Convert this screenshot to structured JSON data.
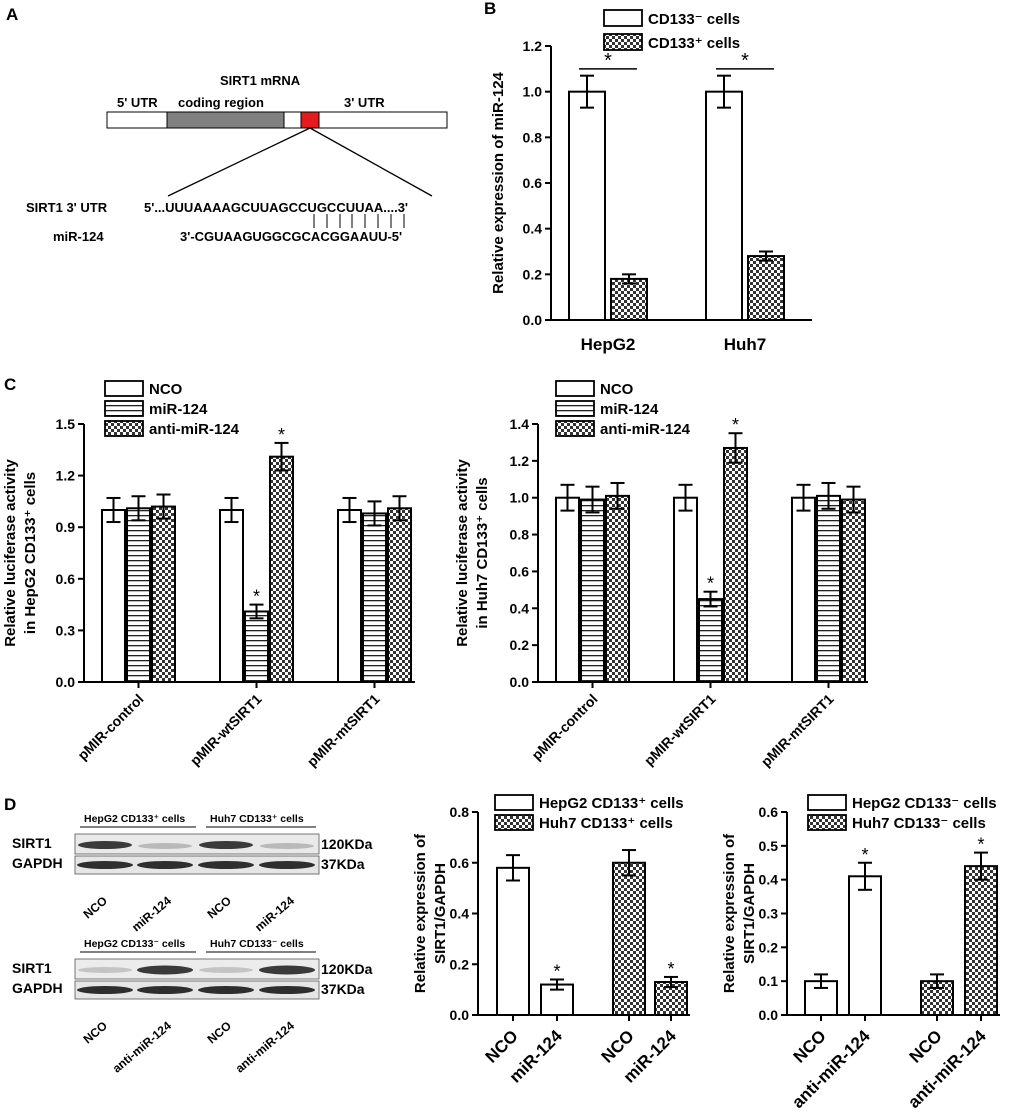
{
  "panels": {
    "a": "A",
    "b": "B",
    "c": "C",
    "d": "D"
  },
  "panel_a": {
    "mrna_title": "SIRT1 mRNA",
    "utr5": "5' UTR",
    "coding": "coding region",
    "utr3": "3' UTR",
    "seq_label_1": "SIRT1 3' UTR",
    "seq_label_2": "miR-124",
    "seq_1": "5'...UUUAAAAGCUUAGCCUGCCUUAA....3'",
    "seq_2": "3'-CGUAAGUGGCGCACGGAAUU-5'",
    "colors": {
      "coding": "#808080",
      "site": "#e41a1c"
    }
  },
  "blots": {
    "top": {
      "header_1": "HepG2 CD133⁺ cells",
      "header_2": "Huh7 CD133⁺ cells",
      "row_1": "SIRT1",
      "row_2": "GAPDH",
      "kda_1": "120KDa",
      "kda_2": "37KDa",
      "lanes": [
        "NCO",
        "miR-124",
        "NCO",
        "miR-124"
      ]
    },
    "bottom": {
      "header_1": "HepG2 CD133⁻ cells",
      "header_2": "Huh7 CD133⁻ cells",
      "row_1": "SIRT1",
      "row_2": "GAPDH",
      "kda_1": "120KDa",
      "kda_2": "37KDa",
      "lanes": [
        "NCO",
        "anti-miR-124",
        "NCO",
        "anti-miR-124"
      ]
    }
  },
  "chart_data": [
    {
      "id": "B",
      "type": "bar",
      "ylabel": "Relative expression of miR-124",
      "ylim": [
        0,
        1.2
      ],
      "yticks": [
        "0.0",
        "0.2",
        "0.4",
        "0.6",
        "0.8",
        "1.0",
        "1.2"
      ],
      "categories": [
        "HepG2",
        "Huh7"
      ],
      "series": [
        {
          "name": "CD133⁻ cells",
          "pattern": "white",
          "values": [
            1.0,
            1.0
          ],
          "errors": [
            0.07,
            0.07
          ]
        },
        {
          "name": "CD133⁺ cells",
          "pattern": "checker",
          "values": [
            0.18,
            0.28
          ],
          "errors": [
            0.02,
            0.02
          ]
        }
      ],
      "significance": [
        "*",
        "*"
      ],
      "legend": "top"
    },
    {
      "id": "C1",
      "type": "bar",
      "ylabel_1": "Relative luciferase activity",
      "ylabel_2": "in HepG2 CD133⁺ cells",
      "ylim": [
        0,
        1.5
      ],
      "yticks": [
        "0.0",
        "0.3",
        "0.6",
        "0.9",
        "1.2",
        "1.5"
      ],
      "categories": [
        "pMIR-control",
        "pMIR-wtSIRT1",
        "pMIR-mtSIRT1"
      ],
      "series": [
        {
          "name": "NCO",
          "pattern": "white",
          "values": [
            1.0,
            1.0,
            1.0
          ],
          "errors": [
            0.07,
            0.07,
            0.07
          ]
        },
        {
          "name": "miR-124",
          "pattern": "hstripe",
          "values": [
            1.01,
            0.41,
            0.98
          ],
          "errors": [
            0.07,
            0.04,
            0.07
          ]
        },
        {
          "name": "anti-miR-124",
          "pattern": "checker",
          "values": [
            1.02,
            1.31,
            1.01
          ],
          "errors": [
            0.07,
            0.08,
            0.07
          ]
        }
      ],
      "stars": [
        {
          "category": 1,
          "series": 1
        },
        {
          "category": 1,
          "series": 2
        }
      ],
      "star_symbol": "*",
      "legend": "top-left"
    },
    {
      "id": "C2",
      "type": "bar",
      "ylabel_1": "Relative luciferase activity",
      "ylabel_2": "in Huh7 CD133⁺ cells",
      "ylim": [
        0,
        1.4
      ],
      "yticks": [
        "0.0",
        "0.2",
        "0.4",
        "0.6",
        "0.8",
        "1.0",
        "1.2",
        "1.4"
      ],
      "categories": [
        "pMIR-control",
        "pMIR-wtSIRT1",
        "pMIR-mtSIRT1"
      ],
      "series": [
        {
          "name": "NCO",
          "pattern": "white",
          "values": [
            1.0,
            1.0,
            1.0
          ],
          "errors": [
            0.07,
            0.07,
            0.07
          ]
        },
        {
          "name": "miR-124",
          "pattern": "hstripe",
          "values": [
            0.99,
            0.45,
            1.01
          ],
          "errors": [
            0.07,
            0.04,
            0.07
          ]
        },
        {
          "name": "anti-miR-124",
          "pattern": "checker",
          "values": [
            1.01,
            1.27,
            0.99
          ],
          "errors": [
            0.07,
            0.08,
            0.07
          ]
        }
      ],
      "stars": [
        {
          "category": 1,
          "series": 1
        },
        {
          "category": 1,
          "series": 2
        }
      ],
      "star_symbol": "*",
      "legend": "top-left"
    },
    {
      "id": "D1",
      "type": "bar",
      "ylabel_1": "Relative expression of",
      "ylabel_2": "SIRT1/GAPDH",
      "ylim": [
        0,
        0.8
      ],
      "yticks": [
        "0.0",
        "0.2",
        "0.4",
        "0.6",
        "0.8"
      ],
      "bars": [
        {
          "label": "NCO",
          "series": 0,
          "value": 0.58,
          "error": 0.05,
          "star": false
        },
        {
          "label": "miR-124",
          "series": 0,
          "value": 0.12,
          "error": 0.02,
          "star": true
        },
        {
          "label": "NCO",
          "series": 1,
          "value": 0.6,
          "error": 0.05,
          "star": false
        },
        {
          "label": "miR-124",
          "series": 1,
          "value": 0.13,
          "error": 0.02,
          "star": true
        }
      ],
      "series": [
        {
          "name": "HepG2 CD133⁺ cells",
          "pattern": "white"
        },
        {
          "name": "Huh7 CD133⁺ cells",
          "pattern": "checker"
        }
      ],
      "star_symbol": "*",
      "legend": "top-right"
    },
    {
      "id": "D2",
      "type": "bar",
      "ylabel_1": "Relative expression of",
      "ylabel_2": "SIRT1/GAPDH",
      "ylim": [
        0,
        0.6
      ],
      "yticks": [
        "0.0",
        "0.1",
        "0.2",
        "0.3",
        "0.4",
        "0.5",
        "0.6"
      ],
      "bars": [
        {
          "label": "NCO",
          "series": 0,
          "value": 0.1,
          "error": 0.02,
          "star": false
        },
        {
          "label": "anti-miR-124",
          "series": 0,
          "value": 0.41,
          "error": 0.04,
          "star": true
        },
        {
          "label": "NCO",
          "series": 1,
          "value": 0.1,
          "error": 0.02,
          "star": false
        },
        {
          "label": "anti-miR-124",
          "series": 1,
          "value": 0.44,
          "error": 0.04,
          "star": true
        }
      ],
      "series": [
        {
          "name": "HepG2 CD133⁻ cells",
          "pattern": "white"
        },
        {
          "name": "Huh7 CD133⁻ cells",
          "pattern": "checker"
        }
      ],
      "star_symbol": "*",
      "legend": "top-right"
    }
  ]
}
